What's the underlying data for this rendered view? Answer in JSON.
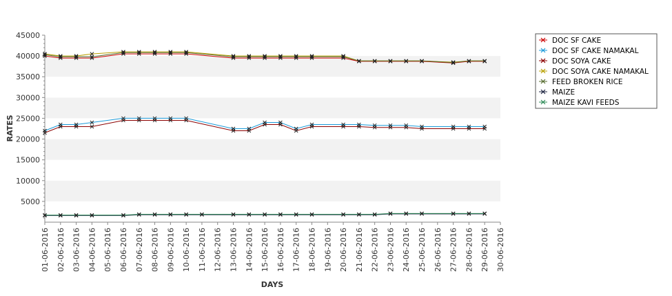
{
  "chart_data": {
    "type": "line",
    "title": "",
    "xlabel": "DAYS",
    "ylabel": "RATES",
    "ylim": [
      0,
      45000
    ],
    "yticks": [
      5000,
      10000,
      15000,
      20000,
      25000,
      30000,
      35000,
      40000,
      45000
    ],
    "categories": [
      "01-06-2016",
      "02-06-2016",
      "03-06-2016",
      "04-06-2016",
      "05-06-2016",
      "06-06-2016",
      "07-06-2016",
      "08-06-2016",
      "09-06-2016",
      "10-06-2016",
      "11-06-2016",
      "12-06-2016",
      "13-06-2016",
      "14-06-2016",
      "15-06-2016",
      "16-06-2016",
      "17-06-2016",
      "18-06-2016",
      "19-06-2016",
      "20-06-2016",
      "21-06-2016",
      "22-06-2016",
      "23-06-2016",
      "24-06-2016",
      "25-06-2016",
      "26-06-2016",
      "27-06-2016",
      "28-06-2016",
      "29-06-2016",
      "30-06-2016"
    ],
    "grid": "alternating horizontal bands",
    "legend_position": "top-right",
    "series": [
      {
        "name": "DOC SF CAKE",
        "color": "#cc0000",
        "values": [
          40000,
          39500,
          39500,
          39500,
          null,
          40500,
          40500,
          40500,
          40500,
          40500,
          null,
          null,
          39500,
          39500,
          39500,
          39500,
          39500,
          39500,
          null,
          39500,
          38700,
          38700,
          38700,
          38700,
          38700,
          null,
          38300,
          38700,
          38700,
          null
        ]
      },
      {
        "name": "DOC SF CAKE NAMAKAL",
        "color": "#1a9ad9",
        "values": [
          22000,
          23500,
          23500,
          24000,
          null,
          25000,
          25000,
          25000,
          25000,
          25000,
          null,
          null,
          22500,
          22500,
          24000,
          24000,
          22500,
          23500,
          null,
          23500,
          23500,
          23300,
          23300,
          23300,
          23000,
          null,
          23000,
          23000,
          23000,
          null
        ]
      },
      {
        "name": "DOC SOYA CAKE",
        "color": "#8b0000",
        "values": [
          21500,
          23000,
          23000,
          23000,
          null,
          24500,
          24500,
          24500,
          24500,
          24500,
          null,
          null,
          22000,
          22000,
          23500,
          23500,
          22000,
          23000,
          null,
          23000,
          23000,
          22800,
          22800,
          22800,
          22500,
          null,
          22500,
          22500,
          22500,
          null
        ]
      },
      {
        "name": "DOC SOYA CAKE NAMAKAL",
        "color": "#b8a000",
        "values": [
          40500,
          40000,
          40000,
          40500,
          null,
          41000,
          41000,
          41000,
          41000,
          41000,
          null,
          null,
          40000,
          40000,
          40000,
          40000,
          40000,
          40000,
          null,
          40000,
          38800,
          38800,
          38800,
          38800,
          38800,
          null,
          38500,
          38800,
          38800,
          null
        ]
      },
      {
        "name": "FEED BROKEN RICE",
        "color": "#556b2f",
        "values": [
          40300,
          39800,
          39800,
          39800,
          null,
          40800,
          40800,
          40800,
          40800,
          40800,
          null,
          null,
          39800,
          39800,
          39800,
          39800,
          39800,
          39800,
          null,
          39800,
          38800,
          38800,
          38800,
          38800,
          38800,
          null,
          38400,
          38800,
          38800,
          null
        ]
      },
      {
        "name": "MAIZE",
        "color": "#1c2340",
        "values": [
          1600,
          1600,
          1600,
          1600,
          null,
          1600,
          1800,
          1800,
          1800,
          1800,
          1800,
          null,
          1800,
          1800,
          1800,
          1800,
          1800,
          1800,
          null,
          1800,
          1800,
          1800,
          2000,
          2000,
          2000,
          null,
          2000,
          2000,
          2000,
          null
        ]
      },
      {
        "name": "MAIZE KAVI FEEDS",
        "color": "#2e8b57",
        "values": [
          1700,
          1700,
          1700,
          1700,
          null,
          1700,
          1900,
          1900,
          1900,
          1900,
          1900,
          null,
          1900,
          1900,
          1900,
          1900,
          1900,
          1900,
          null,
          1900,
          1900,
          1900,
          2100,
          2100,
          2100,
          null,
          2100,
          2100,
          2100,
          null
        ]
      }
    ]
  }
}
